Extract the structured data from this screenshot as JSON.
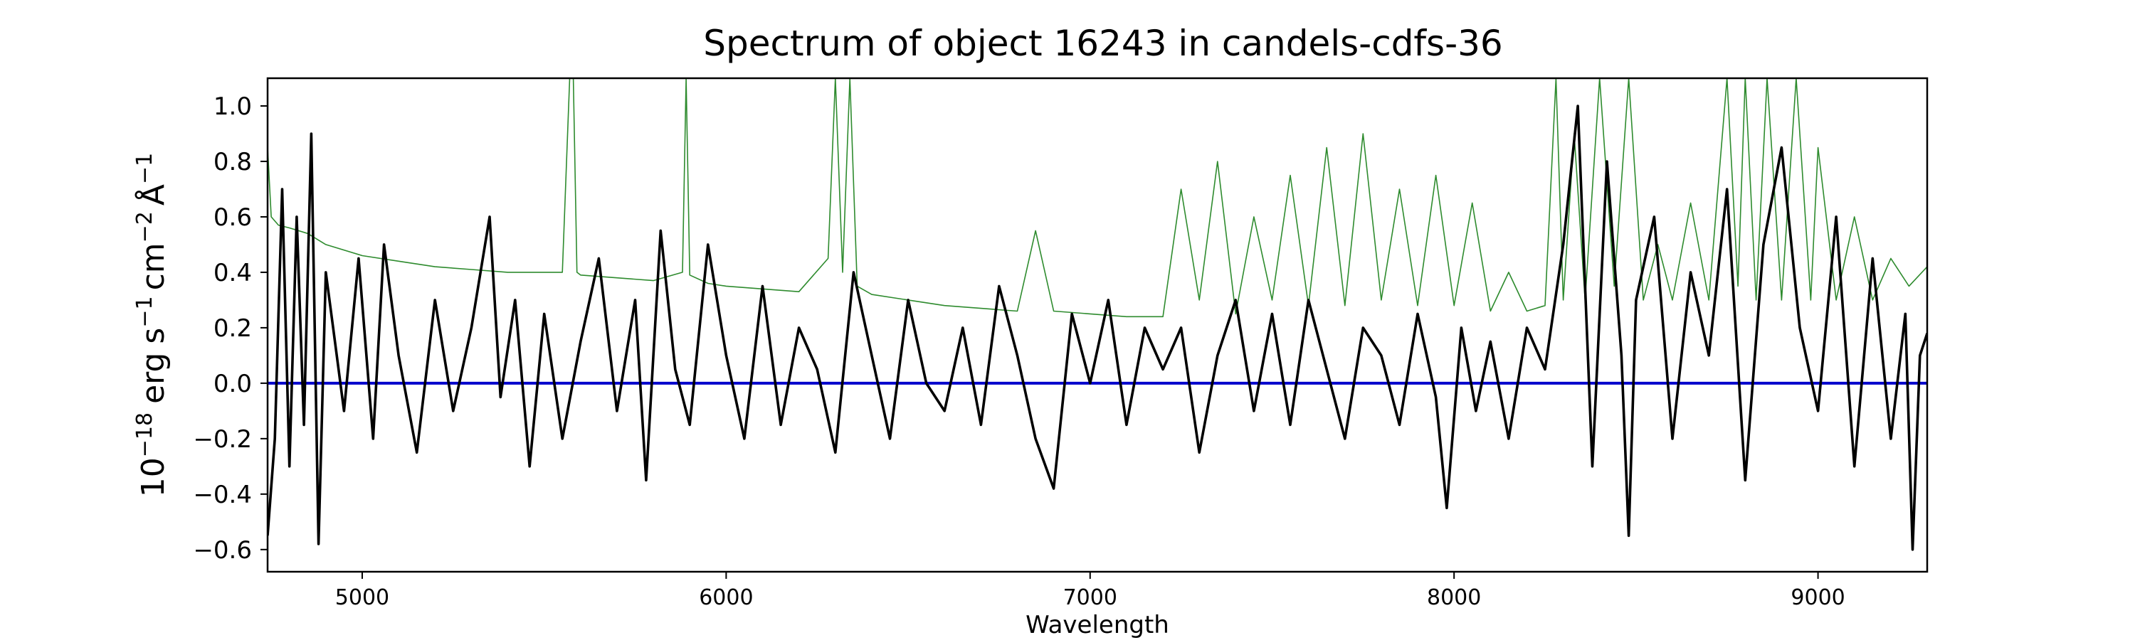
{
  "chart_data": {
    "type": "line",
    "title": "Spectrum of object 16243 in candels-cdfs-36",
    "xlabel": "Wavelength",
    "ylabel": "10−18 erg s−1 cm−2 Å−1",
    "ylabel_parts": {
      "scale_base": "10",
      "scale_exp": "−18",
      "unit_erg": "erg",
      "unit_s": "s",
      "unit_s_exp": "−1",
      "unit_cm": "cm",
      "unit_cm_exp": "−2",
      "unit_A": "Å",
      "unit_A_exp": "−1"
    },
    "xlim": [
      4740,
      9300
    ],
    "ylim": [
      -0.68,
      1.1
    ],
    "xticks": [
      5000,
      6000,
      7000,
      8000,
      9000
    ],
    "xtick_labels": [
      "5000",
      "6000",
      "7000",
      "8000",
      "9000"
    ],
    "yticks": [
      -0.6,
      -0.4,
      -0.2,
      0.0,
      0.2,
      0.4,
      0.6,
      0.8,
      1.0
    ],
    "ytick_labels": [
      "−0.6",
      "−0.4",
      "−0.2",
      "0.0",
      "0.2",
      "0.4",
      "0.6",
      "0.8",
      "1.0"
    ],
    "grid": false,
    "legend": "none",
    "colors": {
      "flux": "#000000",
      "error": "#2e8b2e",
      "zero": "#0000cc"
    },
    "series": [
      {
        "role": "flux",
        "x": [
          4740,
          4760,
          4780,
          4800,
          4820,
          4840,
          4860,
          4880,
          4900,
          4920,
          4950,
          4990,
          5030,
          5060,
          5100,
          5150,
          5200,
          5250,
          5300,
          5350,
          5380,
          5420,
          5460,
          5500,
          5550,
          5600,
          5650,
          5700,
          5750,
          5780,
          5820,
          5860,
          5900,
          5950,
          6000,
          6050,
          6100,
          6150,
          6200,
          6250,
          6300,
          6350,
          6400,
          6450,
          6500,
          6550,
          6600,
          6650,
          6700,
          6750,
          6800,
          6850,
          6900,
          6950,
          7000,
          7050,
          7100,
          7150,
          7200,
          7250,
          7300,
          7350,
          7400,
          7450,
          7500,
          7550,
          7600,
          7650,
          7700,
          7750,
          7800,
          7850,
          7900,
          7950,
          7980,
          8020,
          8060,
          8100,
          8150,
          8200,
          8250,
          8300,
          8340,
          8380,
          8420,
          8460,
          8480,
          8500,
          8550,
          8600,
          8650,
          8700,
          8750,
          8800,
          8850,
          8900,
          8950,
          9000,
          9050,
          9100,
          9150,
          9200,
          9240,
          9260,
          9280,
          9300
        ],
        "y": [
          -0.55,
          -0.2,
          0.7,
          -0.3,
          0.6,
          -0.15,
          0.9,
          -0.58,
          0.4,
          0.2,
          -0.1,
          0.45,
          -0.2,
          0.5,
          0.1,
          -0.25,
          0.3,
          -0.1,
          0.2,
          0.6,
          -0.05,
          0.3,
          -0.3,
          0.25,
          -0.2,
          0.15,
          0.45,
          -0.1,
          0.3,
          -0.35,
          0.55,
          0.05,
          -0.15,
          0.5,
          0.1,
          -0.2,
          0.35,
          -0.15,
          0.2,
          0.05,
          -0.25,
          0.4,
          0.1,
          -0.2,
          0.3,
          0.0,
          -0.1,
          0.2,
          -0.15,
          0.35,
          0.1,
          -0.2,
          -0.38,
          0.25,
          0.0,
          0.3,
          -0.15,
          0.2,
          0.05,
          0.2,
          -0.25,
          0.1,
          0.3,
          -0.1,
          0.25,
          -0.15,
          0.3,
          0.05,
          -0.2,
          0.2,
          0.1,
          -0.15,
          0.25,
          -0.05,
          -0.45,
          0.2,
          -0.1,
          0.15,
          -0.2,
          0.2,
          0.05,
          0.5,
          1.0,
          -0.3,
          0.8,
          0.1,
          -0.55,
          0.3,
          0.6,
          -0.2,
          0.4,
          0.1,
          0.7,
          -0.35,
          0.5,
          0.85,
          0.2,
          -0.1,
          0.6,
          -0.3,
          0.45,
          -0.2,
          0.25,
          -0.6,
          0.1,
          0.18
        ]
      },
      {
        "role": "error",
        "x": [
          4740,
          4750,
          4770,
          4800,
          4850,
          4900,
          5000,
          5100,
          5200,
          5300,
          5400,
          5500,
          5550,
          5570,
          5580,
          5590,
          5600,
          5700,
          5800,
          5880,
          5890,
          5900,
          5950,
          6000,
          6100,
          6200,
          6280,
          6300,
          6320,
          6340,
          6360,
          6400,
          6500,
          6600,
          6700,
          6800,
          6850,
          6900,
          7000,
          7100,
          7200,
          7250,
          7300,
          7350,
          7400,
          7450,
          7500,
          7550,
          7600,
          7650,
          7700,
          7750,
          7800,
          7850,
          7900,
          7950,
          8000,
          8050,
          8100,
          8150,
          8200,
          8250,
          8280,
          8300,
          8330,
          8360,
          8400,
          8440,
          8480,
          8520,
          8560,
          8600,
          8650,
          8700,
          8750,
          8780,
          8800,
          8830,
          8860,
          8900,
          8940,
          8980,
          9000,
          9050,
          9100,
          9150,
          9200,
          9250,
          9300
        ],
        "y": [
          0.85,
          0.6,
          0.57,
          0.56,
          0.54,
          0.5,
          0.46,
          0.44,
          0.42,
          0.41,
          0.4,
          0.4,
          0.4,
          1.1,
          1.1,
          0.4,
          0.39,
          0.38,
          0.37,
          0.4,
          1.1,
          0.39,
          0.36,
          0.35,
          0.34,
          0.33,
          0.45,
          1.1,
          0.4,
          1.1,
          0.35,
          0.32,
          0.3,
          0.28,
          0.27,
          0.26,
          0.55,
          0.26,
          0.25,
          0.24,
          0.24,
          0.7,
          0.3,
          0.8,
          0.25,
          0.6,
          0.3,
          0.75,
          0.28,
          0.85,
          0.28,
          0.9,
          0.3,
          0.7,
          0.28,
          0.75,
          0.28,
          0.65,
          0.26,
          0.4,
          0.26,
          0.28,
          1.1,
          0.3,
          0.9,
          0.3,
          1.1,
          0.35,
          1.1,
          0.3,
          0.5,
          0.3,
          0.65,
          0.3,
          1.1,
          0.35,
          1.1,
          0.3,
          1.1,
          0.3,
          1.1,
          0.3,
          0.85,
          0.3,
          0.6,
          0.3,
          0.45,
          0.35,
          0.42
        ]
      },
      {
        "role": "zero",
        "x": [
          4740,
          9300
        ],
        "y": [
          0,
          0
        ]
      }
    ]
  }
}
